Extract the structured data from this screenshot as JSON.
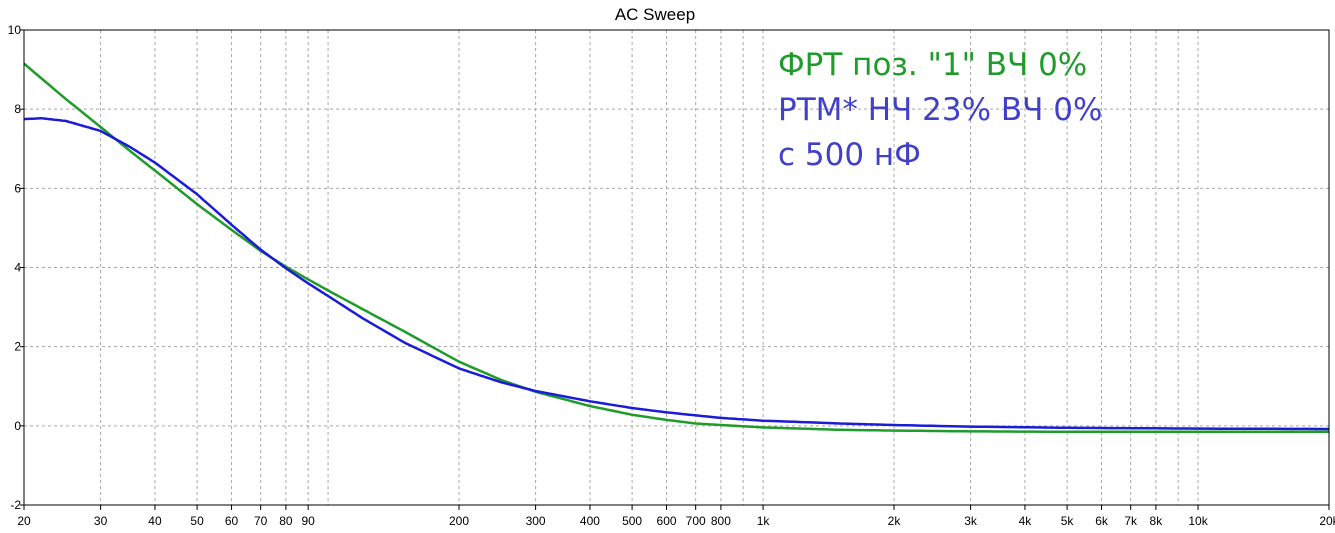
{
  "chart_data": {
    "type": "line",
    "title": "AC Sweep",
    "xscale": "log",
    "xlim": [
      20,
      20000
    ],
    "ylim": [
      -2,
      10
    ],
    "grid": true,
    "xticks": [
      {
        "value": 20,
        "label": "20"
      },
      {
        "value": 30,
        "label": "30"
      },
      {
        "value": 40,
        "label": "40"
      },
      {
        "value": 50,
        "label": "50"
      },
      {
        "value": 60,
        "label": "60"
      },
      {
        "value": 70,
        "label": "70"
      },
      {
        "value": 80,
        "label": "80"
      },
      {
        "value": 90,
        "label": "90"
      },
      {
        "value": 200,
        "label": "200"
      },
      {
        "value": 300,
        "label": "300"
      },
      {
        "value": 400,
        "label": "400"
      },
      {
        "value": 500,
        "label": "500"
      },
      {
        "value": 600,
        "label": "600"
      },
      {
        "value": 700,
        "label": "700"
      },
      {
        "value": 800,
        "label": "800"
      },
      {
        "value": 1000,
        "label": "1k"
      },
      {
        "value": 2000,
        "label": "2k"
      },
      {
        "value": 3000,
        "label": "3k"
      },
      {
        "value": 4000,
        "label": "4k"
      },
      {
        "value": 5000,
        "label": "5k"
      },
      {
        "value": 6000,
        "label": "6k"
      },
      {
        "value": 7000,
        "label": "7k"
      },
      {
        "value": 8000,
        "label": "8k"
      },
      {
        "value": 10000,
        "label": "10k"
      },
      {
        "value": 20000,
        "label": "20k"
      }
    ],
    "xgrid": [
      20,
      30,
      40,
      50,
      60,
      70,
      80,
      90,
      100,
      200,
      300,
      400,
      500,
      600,
      700,
      800,
      900,
      1000,
      2000,
      3000,
      4000,
      5000,
      6000,
      7000,
      8000,
      9000,
      10000,
      20000
    ],
    "yticks": [
      {
        "value": 10,
        "label": "10"
      },
      {
        "value": 8,
        "label": "8"
      },
      {
        "value": 6,
        "label": "6"
      },
      {
        "value": 4,
        "label": "4"
      },
      {
        "value": 2,
        "label": "2"
      },
      {
        "value": 0,
        "label": "0"
      },
      {
        "value": -2,
        "label": "-2"
      }
    ],
    "series": [
      {
        "name": "ФРТ поз. \"1\" ВЧ 0%",
        "color": "#1e9b2a",
        "x": [
          20,
          25,
          30,
          35,
          40,
          50,
          60,
          70,
          80,
          90,
          100,
          120,
          150,
          200,
          250,
          300,
          400,
          500,
          600,
          700,
          800,
          1000,
          1500,
          2000,
          3000,
          5000,
          10000,
          20000
        ],
        "y": [
          9.15,
          8.25,
          7.55,
          6.95,
          6.45,
          5.6,
          4.95,
          4.42,
          4.02,
          3.7,
          3.42,
          2.95,
          2.38,
          1.62,
          1.16,
          0.86,
          0.5,
          0.28,
          0.15,
          0.06,
          0.02,
          -0.04,
          -0.1,
          -0.12,
          -0.14,
          -0.15,
          -0.15,
          -0.15
        ]
      },
      {
        "name": "РТМ* НЧ 23% ВЧ 0%",
        "color": "#1b1bd8",
        "x": [
          20,
          22,
          25,
          30,
          35,
          40,
          50,
          60,
          70,
          80,
          90,
          100,
          120,
          150,
          200,
          250,
          300,
          400,
          500,
          600,
          800,
          1000,
          1500,
          2000,
          3000,
          5000,
          10000,
          20000
        ],
        "y": [
          7.75,
          7.77,
          7.7,
          7.45,
          7.05,
          6.65,
          5.85,
          5.08,
          4.45,
          3.98,
          3.6,
          3.28,
          2.72,
          2.1,
          1.45,
          1.1,
          0.88,
          0.62,
          0.45,
          0.34,
          0.2,
          0.13,
          0.06,
          0.02,
          -0.02,
          -0.05,
          -0.07,
          -0.08
        ]
      }
    ],
    "annotations": {
      "legend_line1": "ФРТ поз. \"1\" ВЧ 0%",
      "legend_line2": "РТМ* НЧ 23% ВЧ 0%",
      "legend_line3": "с 500 нФ",
      "color_line1": "#1e9b2a",
      "color_line2": "#4040c8",
      "color_line3": "#4040c8"
    }
  }
}
